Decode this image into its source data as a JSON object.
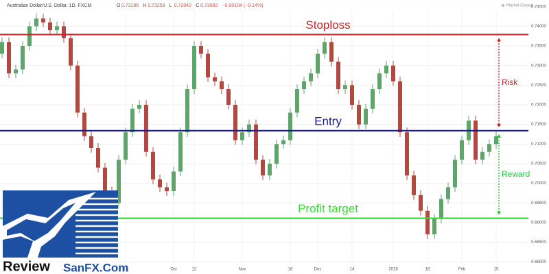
{
  "chart_data": {
    "type": "candlestick",
    "title": "Australian Dollar/U.S. Dollar, 1D, FXCM",
    "header_values": [
      [
        "O",
        "0.73186"
      ],
      [
        "H",
        "0.73259"
      ],
      [
        "L",
        "0.72842"
      ],
      [
        "C",
        "0.73082"
      ],
      [
        "",
        "−0.00104 (−0.14%)"
      ]
    ],
    "status": "Market Closed",
    "categories": [
      null,
      null,
      null,
      null,
      null,
      null,
      null,
      null,
      null,
      null,
      null,
      null,
      null,
      null,
      null,
      null,
      null,
      null,
      "14",
      null,
      null,
      null,
      null,
      null,
      null,
      "Oct",
      null,
      null,
      "12",
      null,
      null,
      null,
      null,
      null,
      null,
      "Nov",
      null,
      null,
      null,
      null,
      null,
      null,
      "16",
      null,
      null,
      null,
      "Dec",
      null,
      null,
      null,
      null,
      "14",
      null,
      null,
      null,
      null,
      null,
      "2016",
      null,
      null,
      null,
      null,
      "18",
      null,
      null,
      null,
      null,
      "Feb",
      null,
      null,
      null,
      null,
      "15"
    ],
    "open": [
      0.733,
      0.736,
      0.728,
      0.729,
      0.735,
      0.74,
      0.742,
      0.741,
      0.739,
      0.74,
      0.737,
      0.73,
      0.718,
      0.712,
      0.709,
      0.704,
      0.698,
      0.695,
      0.706,
      0.713,
      0.719,
      0.72,
      0.708,
      0.701,
      0.699,
      0.698,
      0.703,
      0.713,
      0.724,
      0.735,
      0.733,
      0.727,
      0.726,
      0.724,
      0.72,
      0.711,
      0.713,
      0.715,
      0.706,
      0.702,
      0.705,
      0.71,
      0.711,
      0.718,
      0.724,
      0.726,
      0.728,
      0.733,
      0.736,
      0.731,
      0.724,
      0.725,
      0.72,
      0.715,
      0.719,
      0.724,
      0.728,
      0.73,
      0.726,
      0.713,
      0.702,
      0.697,
      0.693,
      0.687,
      0.691,
      0.696,
      0.699,
      0.706,
      0.711,
      0.716,
      0.706,
      0.708,
      0.71
    ],
    "high": [
      0.7372,
      0.7372,
      0.7302,
      0.7362,
      0.7412,
      0.7432,
      0.7432,
      0.7422,
      0.7412,
      0.7412,
      0.7382,
      0.7312,
      0.7192,
      0.7132,
      0.7102,
      0.7052,
      0.6992,
      0.7072,
      0.7142,
      0.7202,
      0.7212,
      0.7212,
      0.7092,
      0.7022,
      0.7002,
      0.7042,
      0.7142,
      0.7252,
      0.7362,
      0.7362,
      0.7342,
      0.7282,
      0.7272,
      0.7252,
      0.7212,
      0.7142,
      0.7162,
      0.7162,
      0.7072,
      0.7062,
      0.7112,
      0.7122,
      0.7192,
      0.7252,
      0.7272,
      0.7292,
      0.7342,
      0.7372,
      0.7372,
      0.7322,
      0.7262,
      0.7262,
      0.7212,
      0.7202,
      0.7252,
      0.7292,
      0.7312,
      0.7312,
      0.7272,
      0.7142,
      0.7032,
      0.6982,
      0.6942,
      0.6922,
      0.6972,
      0.7002,
      0.7072,
      0.7122,
      0.7172,
      0.7172,
      0.7092,
      0.7112,
      0.7132
    ],
    "low": [
      0.7318,
      0.7268,
      0.7268,
      0.7278,
      0.7338,
      0.7388,
      0.7398,
      0.7378,
      0.7378,
      0.7358,
      0.7288,
      0.7168,
      0.7108,
      0.7078,
      0.7028,
      0.6968,
      0.6938,
      0.6938,
      0.7048,
      0.7118,
      0.7178,
      0.7068,
      0.6998,
      0.6978,
      0.6968,
      0.6968,
      0.7018,
      0.7118,
      0.7228,
      0.7318,
      0.7258,
      0.7248,
      0.7228,
      0.7188,
      0.7098,
      0.7098,
      0.7118,
      0.7048,
      0.7008,
      0.7008,
      0.7038,
      0.7088,
      0.7098,
      0.7168,
      0.7228,
      0.7248,
      0.7268,
      0.7318,
      0.7298,
      0.7228,
      0.7228,
      0.7188,
      0.7138,
      0.7138,
      0.7178,
      0.7228,
      0.7268,
      0.7248,
      0.7118,
      0.7008,
      0.6958,
      0.6918,
      0.6858,
      0.6858,
      0.6898,
      0.6948,
      0.6978,
      0.7048,
      0.7098,
      0.7048,
      0.7048,
      0.7068,
      0.7088
    ],
    "close": [
      0.736,
      0.728,
      0.729,
      0.735,
      0.74,
      0.742,
      0.741,
      0.739,
      0.74,
      0.737,
      0.73,
      0.718,
      0.712,
      0.709,
      0.704,
      0.698,
      0.695,
      0.706,
      0.713,
      0.719,
      0.72,
      0.708,
      0.701,
      0.699,
      0.698,
      0.703,
      0.713,
      0.724,
      0.735,
      0.733,
      0.727,
      0.726,
      0.724,
      0.72,
      0.711,
      0.713,
      0.715,
      0.706,
      0.702,
      0.705,
      0.71,
      0.711,
      0.718,
      0.724,
      0.726,
      0.728,
      0.733,
      0.736,
      0.731,
      0.724,
      0.725,
      0.72,
      0.715,
      0.719,
      0.724,
      0.728,
      0.73,
      0.726,
      0.713,
      0.702,
      0.697,
      0.693,
      0.687,
      0.691,
      0.696,
      0.699,
      0.706,
      0.711,
      0.716,
      0.706,
      0.708,
      0.71,
      0.712
    ],
    "up_color": "#5fa46c",
    "down_color": "#b04a40",
    "ylim": [
      0.6769,
      0.7467
    ],
    "yticks": [
      {
        "value": 0.745,
        "label": "0.74500"
      },
      {
        "value": 0.74,
        "label": "0.74000"
      },
      {
        "value": 0.735,
        "label": "0.73500"
      },
      {
        "value": 0.73,
        "label": "0.73000"
      },
      {
        "value": 0.725,
        "label": "0.72500"
      },
      {
        "value": 0.72,
        "label": "0.72000"
      },
      {
        "value": 0.715,
        "label": "0.71500"
      },
      {
        "value": 0.71,
        "label": "0.71000"
      },
      {
        "value": 0.705,
        "label": "0.70500"
      },
      {
        "value": 0.7,
        "label": "0.70000"
      },
      {
        "value": 0.695,
        "label": "0.69500"
      },
      {
        "value": 0.69,
        "label": "0.69000"
      },
      {
        "value": 0.685,
        "label": "0.68500"
      },
      {
        "value": 0.68,
        "label": "0.68000"
      }
    ],
    "grid": true,
    "levels": [
      {
        "name": "Stoploss",
        "value": 0.7379,
        "color": "#c62828"
      },
      {
        "name": "Entry",
        "value": 0.7134,
        "color": "#1a1f8f"
      },
      {
        "name": "Profit target",
        "value": 0.6911,
        "color": "#33e033"
      }
    ],
    "annotations": [
      {
        "text": "Risk",
        "color": "#c62828"
      },
      {
        "text": "Reward",
        "color": "#22c93a"
      }
    ]
  },
  "logo": {
    "word": "Review",
    "site": "SanFX.Com"
  }
}
